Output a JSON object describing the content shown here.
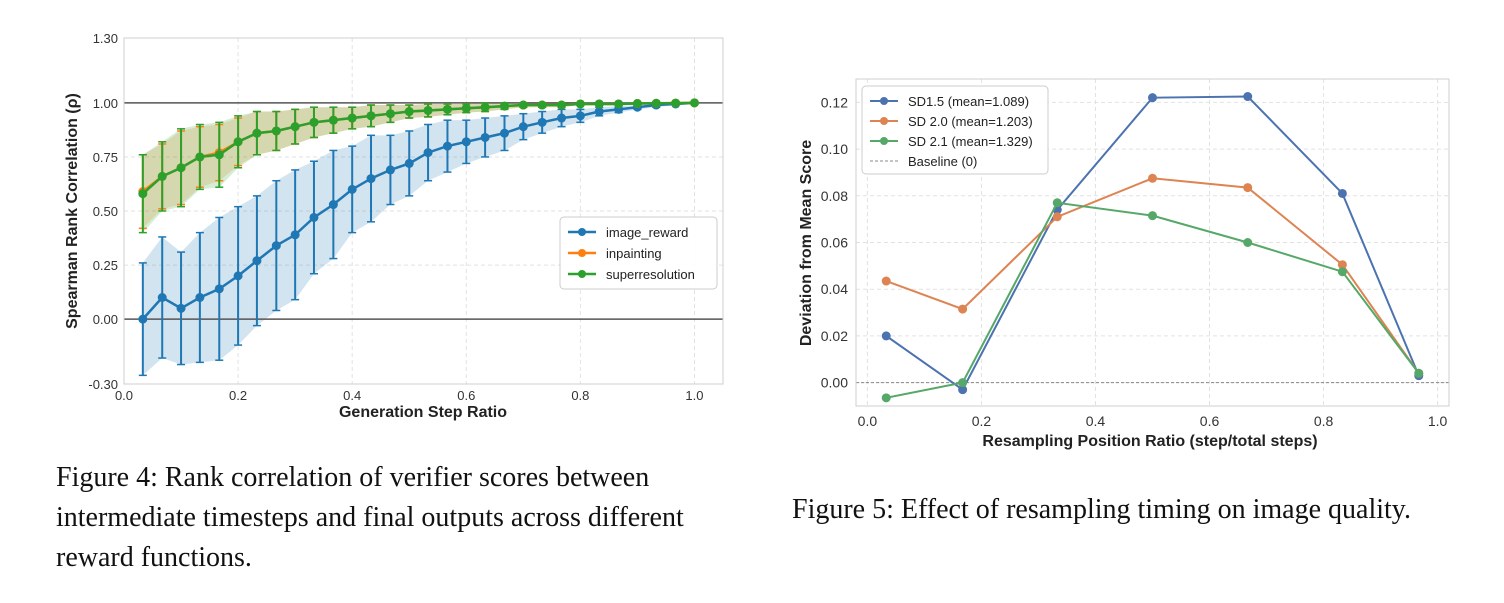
{
  "figures": [
    {
      "caption": "Figure 4: Rank correlation of verifier scores between intermediate timesteps and final outputs across different reward functions."
    },
    {
      "caption": "Figure 5: Effect of resampling timing on image quality."
    }
  ],
  "chart_data": [
    {
      "type": "line",
      "title": "",
      "xlabel": "Generation Step Ratio",
      "ylabel": "Spearman Rank Correlation (ρ)",
      "xlim": [
        0.0,
        1.05
      ],
      "ylim": [
        -0.3,
        1.3
      ],
      "xticks": [
        "0.0",
        "0.2",
        "0.4",
        "0.6",
        "0.8",
        "1.0"
      ],
      "yticks": [
        "-0.30",
        "0.00",
        "0.25",
        "0.50",
        "0.75",
        "1.00",
        "1.30"
      ],
      "grid": true,
      "legend_position": "center-right",
      "reference_lines": [
        0.0,
        1.0
      ],
      "x": [
        0.033,
        0.067,
        0.1,
        0.133,
        0.167,
        0.2,
        0.233,
        0.267,
        0.3,
        0.333,
        0.367,
        0.4,
        0.433,
        0.467,
        0.5,
        0.533,
        0.567,
        0.6,
        0.633,
        0.667,
        0.7,
        0.733,
        0.767,
        0.8,
        0.833,
        0.867,
        0.9,
        0.933,
        0.967,
        1.0
      ],
      "series": [
        {
          "name": "image_reward",
          "color": "#1f77b4",
          "values": [
            0.0,
            0.1,
            0.05,
            0.1,
            0.14,
            0.2,
            0.27,
            0.34,
            0.39,
            0.47,
            0.53,
            0.6,
            0.65,
            0.69,
            0.72,
            0.77,
            0.8,
            0.82,
            0.84,
            0.86,
            0.89,
            0.91,
            0.93,
            0.94,
            0.96,
            0.97,
            0.98,
            0.99,
            0.995,
            1.0
          ],
          "error": [
            0.26,
            0.28,
            0.26,
            0.3,
            0.33,
            0.32,
            0.3,
            0.3,
            0.3,
            0.26,
            0.25,
            0.2,
            0.2,
            0.16,
            0.15,
            0.13,
            0.12,
            0.1,
            0.09,
            0.08,
            0.06,
            0.05,
            0.04,
            0.03,
            0.02,
            0.015,
            0.01,
            0.01,
            0.005,
            0.0
          ]
        },
        {
          "name": "inpainting",
          "color": "#ff7f0e",
          "values": [
            0.59,
            0.66,
            0.7,
            0.75,
            0.77,
            0.82,
            0.86,
            0.87,
            0.89,
            0.91,
            0.92,
            0.93,
            0.94,
            0.95,
            0.96,
            0.965,
            0.97,
            0.975,
            0.98,
            0.985,
            0.99,
            0.99,
            0.99,
            0.995,
            0.995,
            0.995,
            0.997,
            0.998,
            0.999,
            1.0
          ],
          "error": [
            0.17,
            0.15,
            0.17,
            0.14,
            0.13,
            0.11,
            0.1,
            0.09,
            0.08,
            0.07,
            0.06,
            0.05,
            0.05,
            0.04,
            0.03,
            0.03,
            0.025,
            0.02,
            0.02,
            0.015,
            0.01,
            0.01,
            0.01,
            0.005,
            0.005,
            0.005,
            0.003,
            0.002,
            0.001,
            0.0
          ]
        },
        {
          "name": "superresolution",
          "color": "#2ca02c",
          "values": [
            0.58,
            0.66,
            0.7,
            0.75,
            0.76,
            0.82,
            0.86,
            0.87,
            0.89,
            0.91,
            0.92,
            0.93,
            0.94,
            0.95,
            0.96,
            0.965,
            0.97,
            0.975,
            0.98,
            0.985,
            0.99,
            0.99,
            0.99,
            0.995,
            0.995,
            0.995,
            0.997,
            0.998,
            0.999,
            1.0
          ],
          "error": [
            0.18,
            0.16,
            0.18,
            0.15,
            0.15,
            0.12,
            0.1,
            0.09,
            0.08,
            0.07,
            0.06,
            0.05,
            0.05,
            0.04,
            0.03,
            0.03,
            0.025,
            0.02,
            0.02,
            0.015,
            0.01,
            0.01,
            0.01,
            0.005,
            0.005,
            0.005,
            0.003,
            0.002,
            0.001,
            0.0
          ]
        }
      ]
    },
    {
      "type": "line",
      "title": "",
      "xlabel": "Resampling Position Ratio (step/total steps)",
      "ylabel": "Deviation from Mean Score",
      "xlim": [
        -0.02,
        1.02
      ],
      "ylim": [
        -0.01,
        0.13
      ],
      "xticks": [
        "0.0",
        "0.2",
        "0.4",
        "0.6",
        "0.8",
        "1.0"
      ],
      "yticks": [
        "0.00",
        "0.02",
        "0.04",
        "0.06",
        "0.08",
        "0.10",
        "0.12"
      ],
      "grid": true,
      "legend_position": "top-left",
      "x": [
        0.033,
        0.167,
        0.333,
        0.5,
        0.667,
        0.833,
        0.967
      ],
      "series": [
        {
          "name": "SD1.5 (mean=1.089)",
          "color": "#4c72b0",
          "values": [
            0.02,
            -0.003,
            0.074,
            0.122,
            0.1225,
            0.081,
            0.003
          ]
        },
        {
          "name": "SD 2.0 (mean=1.203)",
          "color": "#dd8452",
          "values": [
            0.0435,
            0.0315,
            0.071,
            0.0875,
            0.0835,
            0.0505,
            0.004
          ]
        },
        {
          "name": "SD 2.1 (mean=1.329)",
          "color": "#55a868",
          "values": [
            -0.0065,
            0.0,
            0.077,
            0.0715,
            0.06,
            0.0475,
            0.004
          ]
        }
      ],
      "baseline": {
        "name": "Baseline (0)",
        "value": 0.0,
        "color": "#888888"
      }
    }
  ]
}
